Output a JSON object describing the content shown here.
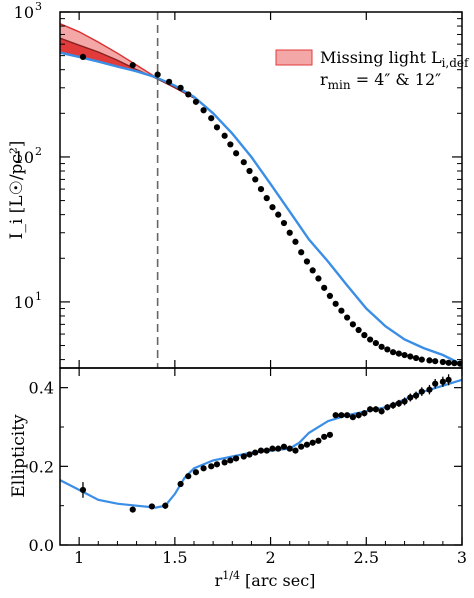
{
  "chart_data": [
    {
      "type": "line",
      "panel": "top",
      "ylabel": "I_i [L☉/pc²]",
      "yscale": "log",
      "xlim": [
        0.9,
        3.0
      ],
      "ylim": [
        3.5,
        1000
      ],
      "grid": false,
      "y_ticks": [
        {
          "value": 10,
          "label": "10",
          "exp": "1"
        },
        {
          "value": 100,
          "label": "10",
          "exp": "2"
        },
        {
          "value": 1000,
          "label": "10",
          "exp": "3"
        }
      ],
      "vline_x": 1.41,
      "legend": {
        "placement": "top-right",
        "line1_main": "Missing light L",
        "line1_sub": "i,def",
        "line2_main": "r",
        "line2_sub": "min",
        "line2_rest": " = 4″ & 12″"
      },
      "model_curve": {
        "color": "#3a8ee6",
        "x": [
          0.9,
          1.0,
          1.1,
          1.2,
          1.3,
          1.4,
          1.5,
          1.6,
          1.7,
          1.8,
          1.9,
          2.0,
          2.1,
          2.2,
          2.3,
          2.4,
          2.5,
          2.6,
          2.7,
          2.8,
          2.9,
          3.0
        ],
        "y": [
          525,
          490,
          455,
          420,
          390,
          355,
          310,
          260,
          200,
          145,
          100,
          65,
          42,
          27,
          19,
          13,
          9.0,
          6.8,
          5.5,
          4.8,
          4.3,
          3.7
        ]
      },
      "outer_model": {
        "color": "#d93030",
        "x": [
          0.9,
          1.0,
          1.1,
          1.2,
          1.3,
          1.4,
          1.5,
          1.6
        ],
        "y": [
          830,
          730,
          620,
          520,
          430,
          355,
          300,
          255
        ]
      },
      "inner_model": {
        "color": "#8a2222",
        "x": [
          0.9,
          1.0,
          1.1,
          1.2,
          1.3,
          1.4,
          1.5,
          1.6
        ],
        "y": [
          660,
          590,
          530,
          465,
          400,
          350,
          300,
          255
        ]
      },
      "band_colors": {
        "light": "#f4a7a7",
        "dark": "#e23b3b"
      },
      "points": {
        "x": [
          1.02,
          1.28,
          1.41,
          1.47,
          1.53,
          1.57,
          1.61,
          1.65,
          1.69,
          1.72,
          1.76,
          1.79,
          1.82,
          1.86,
          1.89,
          1.92,
          1.95,
          1.98,
          2.01,
          2.04,
          2.07,
          2.1,
          2.13,
          2.16,
          2.19,
          2.22,
          2.25,
          2.28,
          2.31,
          2.34,
          2.37,
          2.4,
          2.43,
          2.46,
          2.49,
          2.52,
          2.55,
          2.58,
          2.61,
          2.64,
          2.67,
          2.7,
          2.73,
          2.76,
          2.79,
          2.83,
          2.86,
          2.9,
          2.93,
          2.96,
          2.99
        ],
        "y": [
          490,
          430,
          370,
          330,
          300,
          270,
          240,
          210,
          185,
          160,
          140,
          122,
          106,
          92,
          80,
          70,
          60,
          52,
          45,
          40,
          35,
          30,
          26,
          22,
          19,
          16.5,
          14.5,
          12.5,
          11,
          9.7,
          8.7,
          7.8,
          7.0,
          6.4,
          5.9,
          5.5,
          5.2,
          4.9,
          4.7,
          4.5,
          4.4,
          4.3,
          4.2,
          4.1,
          4.0,
          3.95,
          3.9,
          3.85,
          3.8,
          3.78,
          3.75
        ]
      }
    },
    {
      "type": "scatter",
      "panel": "bottom",
      "ylabel": "Ellipticity",
      "xlabel": "r",
      "xlabel_sup": "1/4",
      "xlabel_unit": " [arc sec]",
      "xlim": [
        0.9,
        3.0
      ],
      "ylim": [
        0.0,
        0.45
      ],
      "grid": false,
      "x_ticks": [
        1.0,
        1.5,
        2.0,
        2.5,
        3.0
      ],
      "x_tick_labels": [
        "1",
        "1.5",
        "2",
        "2.5",
        "3"
      ],
      "y_ticks": [
        0.0,
        0.2,
        0.4
      ],
      "y_tick_labels": [
        "0.0",
        "0.2",
        "0.4"
      ],
      "model_curve": {
        "color": "#3a8ee6",
        "x": [
          0.9,
          1.0,
          1.1,
          1.2,
          1.3,
          1.4,
          1.45,
          1.5,
          1.55,
          1.6,
          1.7,
          1.8,
          1.9,
          2.0,
          2.1,
          2.15,
          2.2,
          2.3,
          2.4,
          2.5,
          2.6,
          2.7,
          2.8,
          2.9,
          3.0
        ],
        "y": [
          0.165,
          0.14,
          0.115,
          0.105,
          0.1,
          0.095,
          0.1,
          0.13,
          0.17,
          0.195,
          0.215,
          0.225,
          0.235,
          0.24,
          0.245,
          0.26,
          0.285,
          0.315,
          0.33,
          0.34,
          0.35,
          0.37,
          0.39,
          0.405,
          0.42
        ]
      },
      "points": {
        "x": [
          1.02,
          1.28,
          1.38,
          1.45,
          1.53,
          1.57,
          1.61,
          1.65,
          1.69,
          1.72,
          1.76,
          1.79,
          1.82,
          1.86,
          1.89,
          1.92,
          1.95,
          1.98,
          2.01,
          2.04,
          2.07,
          2.1,
          2.13,
          2.16,
          2.19,
          2.22,
          2.25,
          2.28,
          2.31,
          2.34,
          2.37,
          2.4,
          2.43,
          2.46,
          2.49,
          2.52,
          2.55,
          2.58,
          2.61,
          2.64,
          2.67,
          2.7,
          2.73,
          2.76,
          2.79,
          2.83,
          2.86,
          2.9,
          2.93
        ],
        "y": [
          0.14,
          0.09,
          0.098,
          0.1,
          0.155,
          0.175,
          0.185,
          0.195,
          0.2,
          0.205,
          0.21,
          0.215,
          0.22,
          0.225,
          0.23,
          0.235,
          0.24,
          0.24,
          0.245,
          0.245,
          0.25,
          0.245,
          0.24,
          0.25,
          0.255,
          0.26,
          0.265,
          0.275,
          0.28,
          0.33,
          0.33,
          0.33,
          0.325,
          0.33,
          0.335,
          0.345,
          0.345,
          0.34,
          0.35,
          0.355,
          0.36,
          0.365,
          0.375,
          0.38,
          0.39,
          0.395,
          0.41,
          0.415,
          0.42
        ],
        "err": [
          0.02,
          0.007,
          0.007,
          0.008,
          0.005,
          0.005,
          0.005,
          0.005,
          0.005,
          0.005,
          0.005,
          0.005,
          0.005,
          0.005,
          0.005,
          0.005,
          0.005,
          0.005,
          0.005,
          0.005,
          0.005,
          0.005,
          0.005,
          0.005,
          0.005,
          0.005,
          0.005,
          0.006,
          0.006,
          0.007,
          0.007,
          0.007,
          0.007,
          0.008,
          0.008,
          0.008,
          0.008,
          0.008,
          0.008,
          0.009,
          0.009,
          0.01,
          0.01,
          0.01,
          0.011,
          0.012,
          0.012,
          0.013,
          0.014
        ]
      }
    }
  ]
}
